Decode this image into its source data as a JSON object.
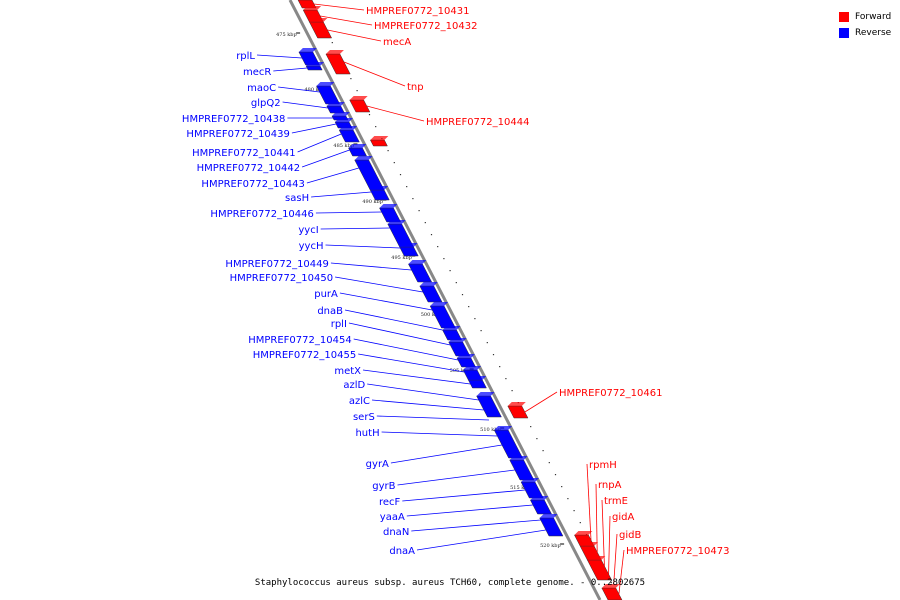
{
  "colors": {
    "forward": "#ff0000",
    "reverse": "#0000ff",
    "backbone": "#888888"
  },
  "legend": [
    {
      "label": "Forward",
      "color": "#ff0000"
    },
    {
      "label": "Reverse",
      "color": "#0000ff"
    }
  ],
  "caption": "Staphylococcus aureus subsp. aureus TCH60, complete genome. - 0..2802675",
  "scale_ticks": [
    "475 kbp",
    "480 kbp",
    "485 kbp",
    "490 kbp",
    "495 kbp",
    "500 kbp",
    "505 kbp",
    "510 kbp",
    "515 kbp",
    "520 kbp"
  ],
  "reverse_genes": [
    "rplL",
    "mecR",
    "maoC",
    "glpQ2",
    "HMPREF0772_10438",
    "HMPREF0772_10439",
    "HMPREF0772_10441",
    "HMPREF0772_10442",
    "HMPREF0772_10443",
    "sasH",
    "HMPREF0772_10446",
    "yycI",
    "yycH",
    "HMPREF0772_10449",
    "HMPREF0772_10450",
    "purA",
    "dnaB",
    "rplI",
    "HMPREF0772_10454",
    "HMPREF0772_10455",
    "metX",
    "azlD",
    "azlC",
    "serS",
    "hutH",
    "gyrA",
    "gyrB",
    "recF",
    "yaaA",
    "dnaN",
    "dnaA"
  ],
  "forward_genes": [
    "HMPREF0772_10431",
    "HMPREF0772_10432",
    "mecA",
    "tnp",
    "HMPREF0772_10444",
    "HMPREF0772_10461",
    "rpmH",
    "rnpA",
    "trmE",
    "gidA",
    "gidB",
    "HMPREF0772_10473"
  ]
}
